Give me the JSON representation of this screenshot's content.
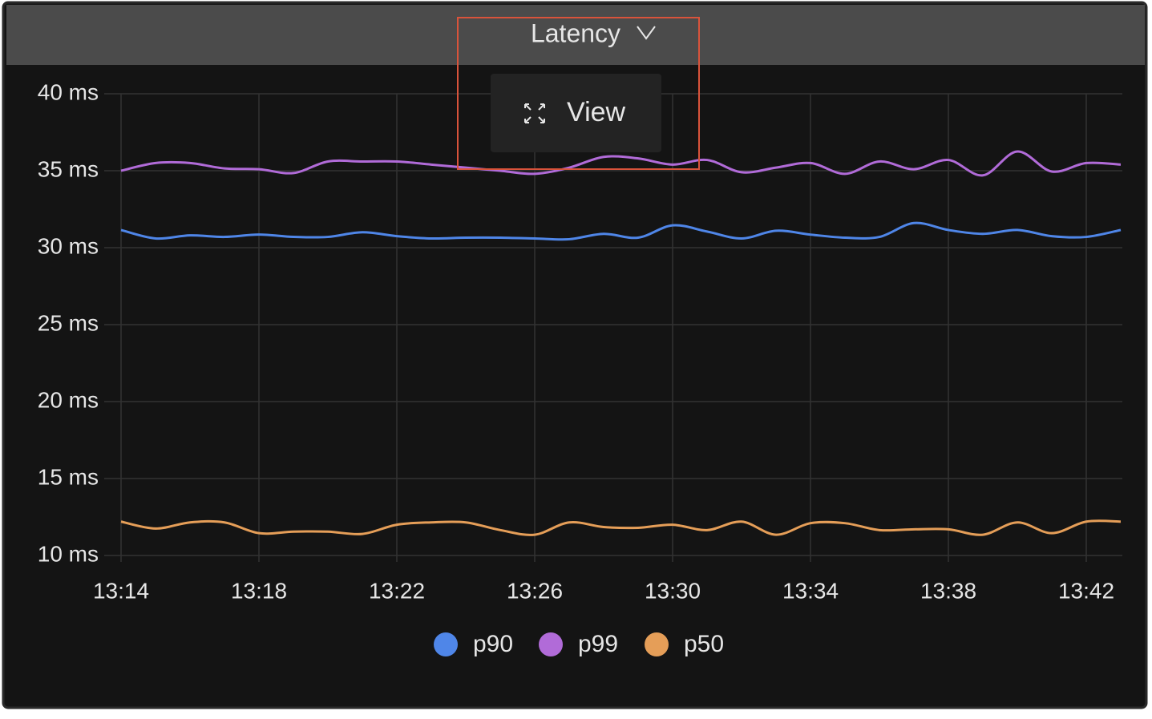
{
  "panel": {
    "title": "Latency",
    "menu": [
      "View"
    ]
  },
  "chart_data": {
    "type": "line",
    "categories": [
      "13:14",
      null,
      null,
      null,
      "13:18",
      null,
      null,
      null,
      "13:22",
      null,
      null,
      null,
      "13:26",
      null,
      null,
      null,
      "13:30",
      null,
      null,
      null,
      "13:34",
      null,
      null,
      null,
      "13:38",
      null,
      null,
      null,
      "13:42",
      null
    ],
    "series": [
      {
        "name": "p90",
        "color": "#4f86e8",
        "values": [
          31.15,
          30.6,
          30.8,
          30.7,
          30.85,
          30.7,
          30.7,
          31.0,
          30.75,
          30.6,
          30.65,
          30.65,
          30.6,
          30.55,
          30.9,
          30.65,
          31.45,
          31.05,
          30.6,
          31.1,
          30.85,
          30.65,
          30.7,
          31.6,
          31.15,
          30.9,
          31.15,
          30.75,
          30.7,
          31.15
        ]
      },
      {
        "name": "p99",
        "color": "#b16bd8",
        "values": [
          35.0,
          35.5,
          35.5,
          35.15,
          35.1,
          34.85,
          35.6,
          35.6,
          35.6,
          35.4,
          35.2,
          35.0,
          34.8,
          35.2,
          35.9,
          35.8,
          35.4,
          35.7,
          34.9,
          35.2,
          35.5,
          34.8,
          35.6,
          35.1,
          35.7,
          34.7,
          36.25,
          34.95,
          35.5,
          35.4
        ]
      },
      {
        "name": "p50",
        "color": "#e59e58",
        "values": [
          12.2,
          11.75,
          12.15,
          12.15,
          11.45,
          11.55,
          11.55,
          11.4,
          12.0,
          12.15,
          12.15,
          11.65,
          11.35,
          12.15,
          11.85,
          11.8,
          12.0,
          11.65,
          12.2,
          11.35,
          12.1,
          12.1,
          11.65,
          11.7,
          11.7,
          11.35,
          12.15,
          11.45,
          12.2,
          12.2
        ]
      }
    ],
    "ylim": [
      10,
      40
    ],
    "yticks": [
      {
        "value": 10,
        "label": "10 ms"
      },
      {
        "value": 15,
        "label": "15 ms"
      },
      {
        "value": 20,
        "label": "20 ms"
      },
      {
        "value": 25,
        "label": "25 ms"
      },
      {
        "value": 30,
        "label": "30 ms"
      },
      {
        "value": 35,
        "label": "35 ms"
      },
      {
        "value": 40,
        "label": "40 ms"
      }
    ],
    "grid": true
  }
}
